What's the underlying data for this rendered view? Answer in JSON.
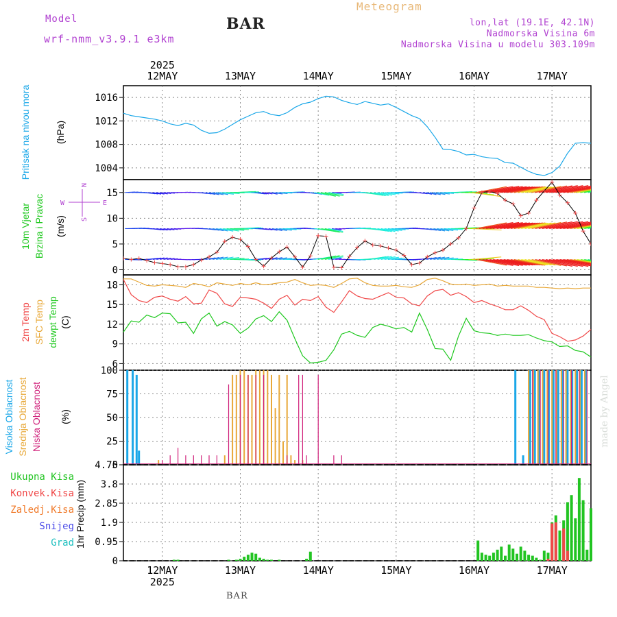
{
  "header": {
    "model_label": "Model",
    "model_name": "wrf-nmm_v3.9.1  e3km",
    "station": "BAR",
    "product": "Meteogram",
    "lonlat": "lon,lat (19.1E, 42.1N)",
    "elevation": "Nadmorska Visina 6m",
    "model_elevation": "Nadmorska Visina u modelu 303.109m",
    "footer_station": "BAR",
    "watermark": "made by Angel"
  },
  "colors": {
    "pressure": "#1aa7e8",
    "temp2m": "#f04848",
    "sfc_temp": "#e8a838",
    "dewpt": "#1ec81e",
    "high_cloud": "#1aa7e8",
    "mid_cloud": "#e8a838",
    "low_cloud": "#d0207a",
    "total_precip": "#22c422",
    "conv_precip": "#f04848",
    "frz_precip": "#f07a2a",
    "snow": "#4a4ae8",
    "hail": "#20c0c0",
    "wind_label": "#1ec81e",
    "compass": "#b040d0"
  },
  "chart_data": [
    {
      "type": "line",
      "id": "pressure",
      "title": "Pritisak na nivou mora",
      "ylabel": "(hPa)",
      "ylim": [
        1002,
        1018
      ],
      "yticks": [
        1004,
        1008,
        1012,
        1016
      ],
      "xlim": [
        -0.5,
        5.5
      ],
      "top_year": "2025",
      "days": [
        "12MAY",
        "13MAY",
        "14MAY",
        "15MAY",
        "16MAY",
        "17MAY"
      ],
      "series": [
        {
          "name": "MSLP",
          "x": [
            -0.5,
            -0.4,
            -0.3,
            -0.2,
            -0.1,
            0.0,
            0.1,
            0.2,
            0.3,
            0.4,
            0.5,
            0.6,
            0.7,
            0.8,
            0.9,
            1.0,
            1.1,
            1.2,
            1.3,
            1.4,
            1.5,
            1.6,
            1.7,
            1.8,
            1.9,
            2.0,
            2.1,
            2.2,
            2.3,
            2.4,
            2.5,
            2.6,
            2.7,
            2.8,
            2.9,
            3.0,
            3.1,
            3.2,
            3.3,
            3.4,
            3.5,
            3.6,
            3.7,
            3.8,
            3.9,
            4.0,
            4.1,
            4.2,
            4.3,
            4.4,
            4.5,
            4.6,
            4.7,
            4.8,
            4.9,
            5.0,
            5.1,
            5.2,
            5.3,
            5.4,
            5.5
          ],
          "values": [
            1013.3,
            1012.9,
            1012.7,
            1012.5,
            1012.3,
            1012.0,
            1011.5,
            1011.2,
            1011.6,
            1011.3,
            1010.4,
            1009.9,
            1010.0,
            1010.6,
            1011.4,
            1012.2,
            1012.8,
            1013.4,
            1013.6,
            1013.1,
            1012.9,
            1013.4,
            1014.3,
            1014.9,
            1015.2,
            1015.8,
            1016.2,
            1016.1,
            1015.5,
            1015.1,
            1014.8,
            1015.3,
            1015.0,
            1014.7,
            1014.9,
            1014.3,
            1013.6,
            1012.9,
            1012.4,
            1011.0,
            1009.2,
            1007.2,
            1007.1,
            1006.8,
            1006.2,
            1006.3,
            1005.9,
            1005.7,
            1005.6,
            1004.9,
            1004.8,
            1004.1,
            1003.4,
            1002.9,
            1002.7,
            1003.2,
            1004.3,
            1006.5,
            1008.2,
            1008.3,
            1008.2
          ]
        }
      ]
    },
    {
      "type": "line",
      "id": "wind",
      "title": "10m Vjetar Brzina i Pravac",
      "ylabel": "(m/s)",
      "compass": {
        "north": "N",
        "south": "S",
        "east": "E",
        "west": "W"
      },
      "ylim": [
        -1,
        17.5
      ],
      "yticks": [
        0,
        5,
        10,
        15
      ],
      "barb_rows": [
        15,
        8,
        2
      ],
      "series": [
        {
          "name": "Wind speed",
          "x": [
            -0.5,
            -0.4,
            -0.3,
            -0.2,
            -0.1,
            0.0,
            0.1,
            0.2,
            0.3,
            0.4,
            0.5,
            0.6,
            0.7,
            0.8,
            0.9,
            1.0,
            1.1,
            1.2,
            1.3,
            1.4,
            1.5,
            1.6,
            1.7,
            1.8,
            1.9,
            2.0,
            2.1,
            2.2,
            2.3,
            2.4,
            2.5,
            2.6,
            2.7,
            2.8,
            2.9,
            3.0,
            3.1,
            3.2,
            3.3,
            3.4,
            3.5,
            3.6,
            3.7,
            3.8,
            3.9,
            4.0,
            4.1,
            4.2,
            4.3,
            4.4,
            4.5,
            4.6,
            4.7,
            4.8,
            4.9,
            5.0,
            5.1,
            5.2,
            5.3,
            5.4,
            5.5
          ],
          "values": [
            2.2,
            2.0,
            2.2,
            1.8,
            1.4,
            1.2,
            1.0,
            0.6,
            0.6,
            1.0,
            1.9,
            2.5,
            3.4,
            5.5,
            6.3,
            5.9,
            4.5,
            2.0,
            0.7,
            2.3,
            3.5,
            4.4,
            2.5,
            0.5,
            2.7,
            6.6,
            6.5,
            0.5,
            0.4,
            2.6,
            4.3,
            5.6,
            4.8,
            4.6,
            4.2,
            3.8,
            2.8,
            1.0,
            1.3,
            2.5,
            3.3,
            3.8,
            5.0,
            6.2,
            8.0,
            12.0,
            15.0,
            15.2,
            14.8,
            13.5,
            12.8,
            10.5,
            11.0,
            13.5,
            15.3,
            17.0,
            14.5,
            13.0,
            11.0,
            7.5,
            5.0
          ]
        }
      ]
    },
    {
      "type": "line",
      "id": "temperature",
      "title": "2m Temp / SFC Temp / dewpt Temp",
      "series_labels": [
        "2m Temp",
        "SFC Temp",
        "dewpt Temp"
      ],
      "ylabel": "(C)",
      "ylim": [
        5,
        19.5
      ],
      "yticks": [
        6,
        9,
        12,
        15,
        18
      ],
      "series": [
        {
          "name": "2m Temp",
          "x": [
            -0.5,
            -0.4,
            -0.3,
            -0.2,
            -0.1,
            0.0,
            0.1,
            0.2,
            0.3,
            0.4,
            0.5,
            0.6,
            0.7,
            0.8,
            0.9,
            1.0,
            1.1,
            1.2,
            1.3,
            1.4,
            1.5,
            1.6,
            1.7,
            1.8,
            1.9,
            2.0,
            2.1,
            2.2,
            2.3,
            2.4,
            2.5,
            2.6,
            2.7,
            2.8,
            2.9,
            3.0,
            3.1,
            3.2,
            3.3,
            3.4,
            3.5,
            3.6,
            3.7,
            3.8,
            3.9,
            4.0,
            4.1,
            4.2,
            4.3,
            4.4,
            4.5,
            4.6,
            4.7,
            4.8,
            4.9,
            5.0,
            5.1,
            5.2,
            5.3,
            5.4,
            5.5
          ],
          "values": [
            18.8,
            16.5,
            15.6,
            15.3,
            16.1,
            16.3,
            15.8,
            15.5,
            16.2,
            15.1,
            15.2,
            17.2,
            16.7,
            15.1,
            14.7,
            16.1,
            16.0,
            15.8,
            15.2,
            14.4,
            15.8,
            16.4,
            14.9,
            15.8,
            15.6,
            16.2,
            14.6,
            13.8,
            15.4,
            17.1,
            16.3,
            15.9,
            15.8,
            16.3,
            16.8,
            16.1,
            16.0,
            15.1,
            14.8,
            16.3,
            17.1,
            17.3,
            16.4,
            16.8,
            16.2,
            15.3,
            15.6,
            15.1,
            14.7,
            14.2,
            14.2,
            14.8,
            14.1,
            13.2,
            12.7,
            10.6,
            10.1,
            9.4,
            9.6,
            10.2,
            11.2
          ]
        },
        {
          "name": "SFC Temp",
          "x": [
            -0.5,
            -0.4,
            -0.3,
            -0.2,
            -0.1,
            0.0,
            0.1,
            0.2,
            0.3,
            0.4,
            0.5,
            0.6,
            0.7,
            0.8,
            0.9,
            1.0,
            1.1,
            1.2,
            1.3,
            1.4,
            1.5,
            1.6,
            1.7,
            1.8,
            1.9,
            2.0,
            2.1,
            2.2,
            2.3,
            2.4,
            2.5,
            2.6,
            2.7,
            2.8,
            2.9,
            3.0,
            3.1,
            3.2,
            3.3,
            3.4,
            3.5,
            3.6,
            3.7,
            3.8,
            3.9,
            4.0,
            4.1,
            4.2,
            4.3,
            4.4,
            4.5,
            4.6,
            4.7,
            4.8,
            4.9,
            5.0,
            5.1,
            5.2,
            5.3,
            5.4,
            5.5
          ],
          "values": [
            18.9,
            18.9,
            18.4,
            17.9,
            17.8,
            18.0,
            17.9,
            17.8,
            17.6,
            18.2,
            18.0,
            17.7,
            18.3,
            18.1,
            17.9,
            18.2,
            18.0,
            18.3,
            18.0,
            18.1,
            18.3,
            18.4,
            18.8,
            18.3,
            17.9,
            18.0,
            17.9,
            17.6,
            18.2,
            18.9,
            19.0,
            18.3,
            17.9,
            17.8,
            17.8,
            17.9,
            17.7,
            17.6,
            18.0,
            18.8,
            19.0,
            18.6,
            18.1,
            18.0,
            18.1,
            17.9,
            18.0,
            18.1,
            17.8,
            17.9,
            17.8,
            17.8,
            17.8,
            17.6,
            17.6,
            17.5,
            17.4,
            17.5,
            17.4,
            17.5,
            17.5
          ]
        },
        {
          "name": "dewpt Temp",
          "x": [
            -0.5,
            -0.4,
            -0.3,
            -0.2,
            -0.1,
            0.0,
            0.1,
            0.2,
            0.3,
            0.4,
            0.5,
            0.6,
            0.7,
            0.8,
            0.9,
            1.0,
            1.1,
            1.2,
            1.3,
            1.4,
            1.5,
            1.6,
            1.7,
            1.8,
            1.9,
            2.0,
            2.1,
            2.2,
            2.3,
            2.4,
            2.5,
            2.6,
            2.7,
            2.8,
            2.9,
            3.0,
            3.1,
            3.2,
            3.3,
            3.4,
            3.5,
            3.6,
            3.7,
            3.8,
            3.9,
            4.0,
            4.1,
            4.2,
            4.3,
            4.4,
            4.5,
            4.6,
            4.7,
            4.8,
            4.9,
            5.0,
            5.1,
            5.2,
            5.3,
            5.4,
            5.5
          ],
          "values": [
            10.8,
            12.5,
            12.3,
            13.4,
            13.0,
            13.7,
            13.6,
            12.2,
            12.3,
            10.6,
            12.8,
            13.7,
            11.7,
            12.4,
            11.9,
            10.6,
            11.4,
            12.8,
            13.3,
            12.4,
            13.9,
            12.6,
            9.8,
            7.2,
            6.1,
            6.2,
            6.5,
            8.1,
            10.5,
            10.9,
            10.3,
            10.0,
            11.5,
            12.0,
            11.7,
            11.3,
            11.5,
            10.8,
            13.7,
            11.2,
            8.3,
            8.2,
            6.5,
            10.2,
            12.9,
            11.0,
            10.7,
            10.6,
            10.3,
            10.5,
            10.3,
            10.3,
            10.4,
            9.9,
            9.5,
            9.3,
            8.6,
            8.7,
            8.0,
            7.8,
            7.0
          ]
        }
      ]
    },
    {
      "type": "bar",
      "id": "clouds",
      "title": "Visoka Oblacnost / Srednja Oblacnost / Niska Oblacnost",
      "series_labels": [
        "Visoka Oblacnost",
        "Srednja Oblacnost",
        "Niska Oblacnost"
      ],
      "ylabel": "(%)",
      "ylim": [
        0,
        100
      ],
      "yticks": [
        0,
        25,
        50,
        75,
        100
      ],
      "series": [
        {
          "name": "High cloud",
          "x": [
            -0.45,
            -0.38,
            -0.33,
            -0.3,
            4.53,
            4.63,
            4.72,
            4.78,
            4.84,
            4.9,
            4.96,
            5.02,
            5.08,
            5.14,
            5.2,
            5.26,
            5.32,
            5.38,
            5.44
          ],
          "values": [
            100,
            100,
            95,
            15,
            100,
            10,
            100,
            100,
            100,
            100,
            100,
            100,
            100,
            100,
            100,
            100,
            100,
            100,
            100
          ]
        },
        {
          "name": "Mid cloud",
          "x": [
            -0.05,
            0.8,
            0.9,
            0.95,
            1.0,
            1.05,
            1.1,
            1.15,
            1.2,
            1.25,
            1.3,
            1.35,
            1.4,
            1.45,
            1.5,
            1.55,
            1.6,
            1.65,
            1.7,
            1.8,
            4.7,
            4.76,
            4.82,
            4.88,
            4.94,
            5.0,
            5.06,
            5.12,
            5.18,
            5.24,
            5.3,
            5.36,
            5.42
          ],
          "values": [
            5,
            10,
            95,
            95,
            100,
            100,
            95,
            95,
            100,
            100,
            100,
            100,
            95,
            60,
            95,
            25,
            95,
            10,
            5,
            5,
            100,
            100,
            100,
            100,
            100,
            100,
            100,
            100,
            100,
            100,
            100,
            100,
            100
          ]
        },
        {
          "name": "Low cloud",
          "x": [
            0.0,
            0.1,
            0.2,
            0.3,
            0.4,
            0.5,
            0.6,
            0.7,
            0.85,
            1.0,
            1.1,
            1.2,
            1.3,
            1.6,
            1.75,
            1.8,
            1.85,
            2.0,
            2.2,
            2.3,
            4.75,
            4.85,
            4.95,
            5.05,
            5.15,
            5.25,
            5.35,
            5.45
          ],
          "values": [
            5,
            10,
            18,
            10,
            10,
            10,
            10,
            10,
            85,
            95,
            95,
            95,
            95,
            10,
            95,
            95,
            10,
            95,
            10,
            10,
            100,
            100,
            100,
            100,
            100,
            100,
            100,
            100
          ]
        }
      ]
    },
    {
      "type": "bar",
      "id": "precip",
      "title": "1hr Precip",
      "series_labels": [
        "Ukupna Kisa",
        "Konvek.Kisa",
        "Zaledj.Kisa",
        "Snijeg",
        "Grad"
      ],
      "ylabel": "1hr Precip (mm)",
      "ylim": [
        0,
        4.75
      ],
      "yticks": [
        0,
        0.95,
        1.9,
        2.85,
        3.8,
        4.75
      ],
      "bottom_year": "2025",
      "series": [
        {
          "name": "Ukupna Kisa",
          "x": [
            0.15,
            0.2,
            0.85,
            0.95,
            1.0,
            1.05,
            1.1,
            1.15,
            1.2,
            1.25,
            1.3,
            1.35,
            1.4,
            1.5,
            1.85,
            1.9,
            4.05,
            4.1,
            4.15,
            4.2,
            4.25,
            4.3,
            4.35,
            4.4,
            4.45,
            4.5,
            4.55,
            4.6,
            4.65,
            4.7,
            4.75,
            4.8,
            4.85,
            4.9,
            4.95,
            5.0,
            5.05,
            5.1,
            5.15,
            5.2,
            5.25,
            5.3,
            5.35,
            5.4,
            5.45,
            5.5
          ],
          "values": [
            0.05,
            0.05,
            0.05,
            0.05,
            0.1,
            0.2,
            0.3,
            0.4,
            0.35,
            0.15,
            0.1,
            0.05,
            0.05,
            0.05,
            0.1,
            0.45,
            1.0,
            0.4,
            0.3,
            0.25,
            0.4,
            0.55,
            0.7,
            0.25,
            0.8,
            0.6,
            0.35,
            0.7,
            0.5,
            0.3,
            0.25,
            0.15,
            0.05,
            0.5,
            0.4,
            1.9,
            2.25,
            1.5,
            2.0,
            2.9,
            3.25,
            2.1,
            4.1,
            3.0,
            0.55,
            2.6
          ]
        },
        {
          "name": "Konvek.Kisa",
          "x": [
            4.95,
            5.0,
            5.05,
            5.15,
            5.2
          ],
          "values": [
            0.1,
            1.85,
            1.9,
            1.6,
            0.5
          ]
        }
      ]
    }
  ]
}
